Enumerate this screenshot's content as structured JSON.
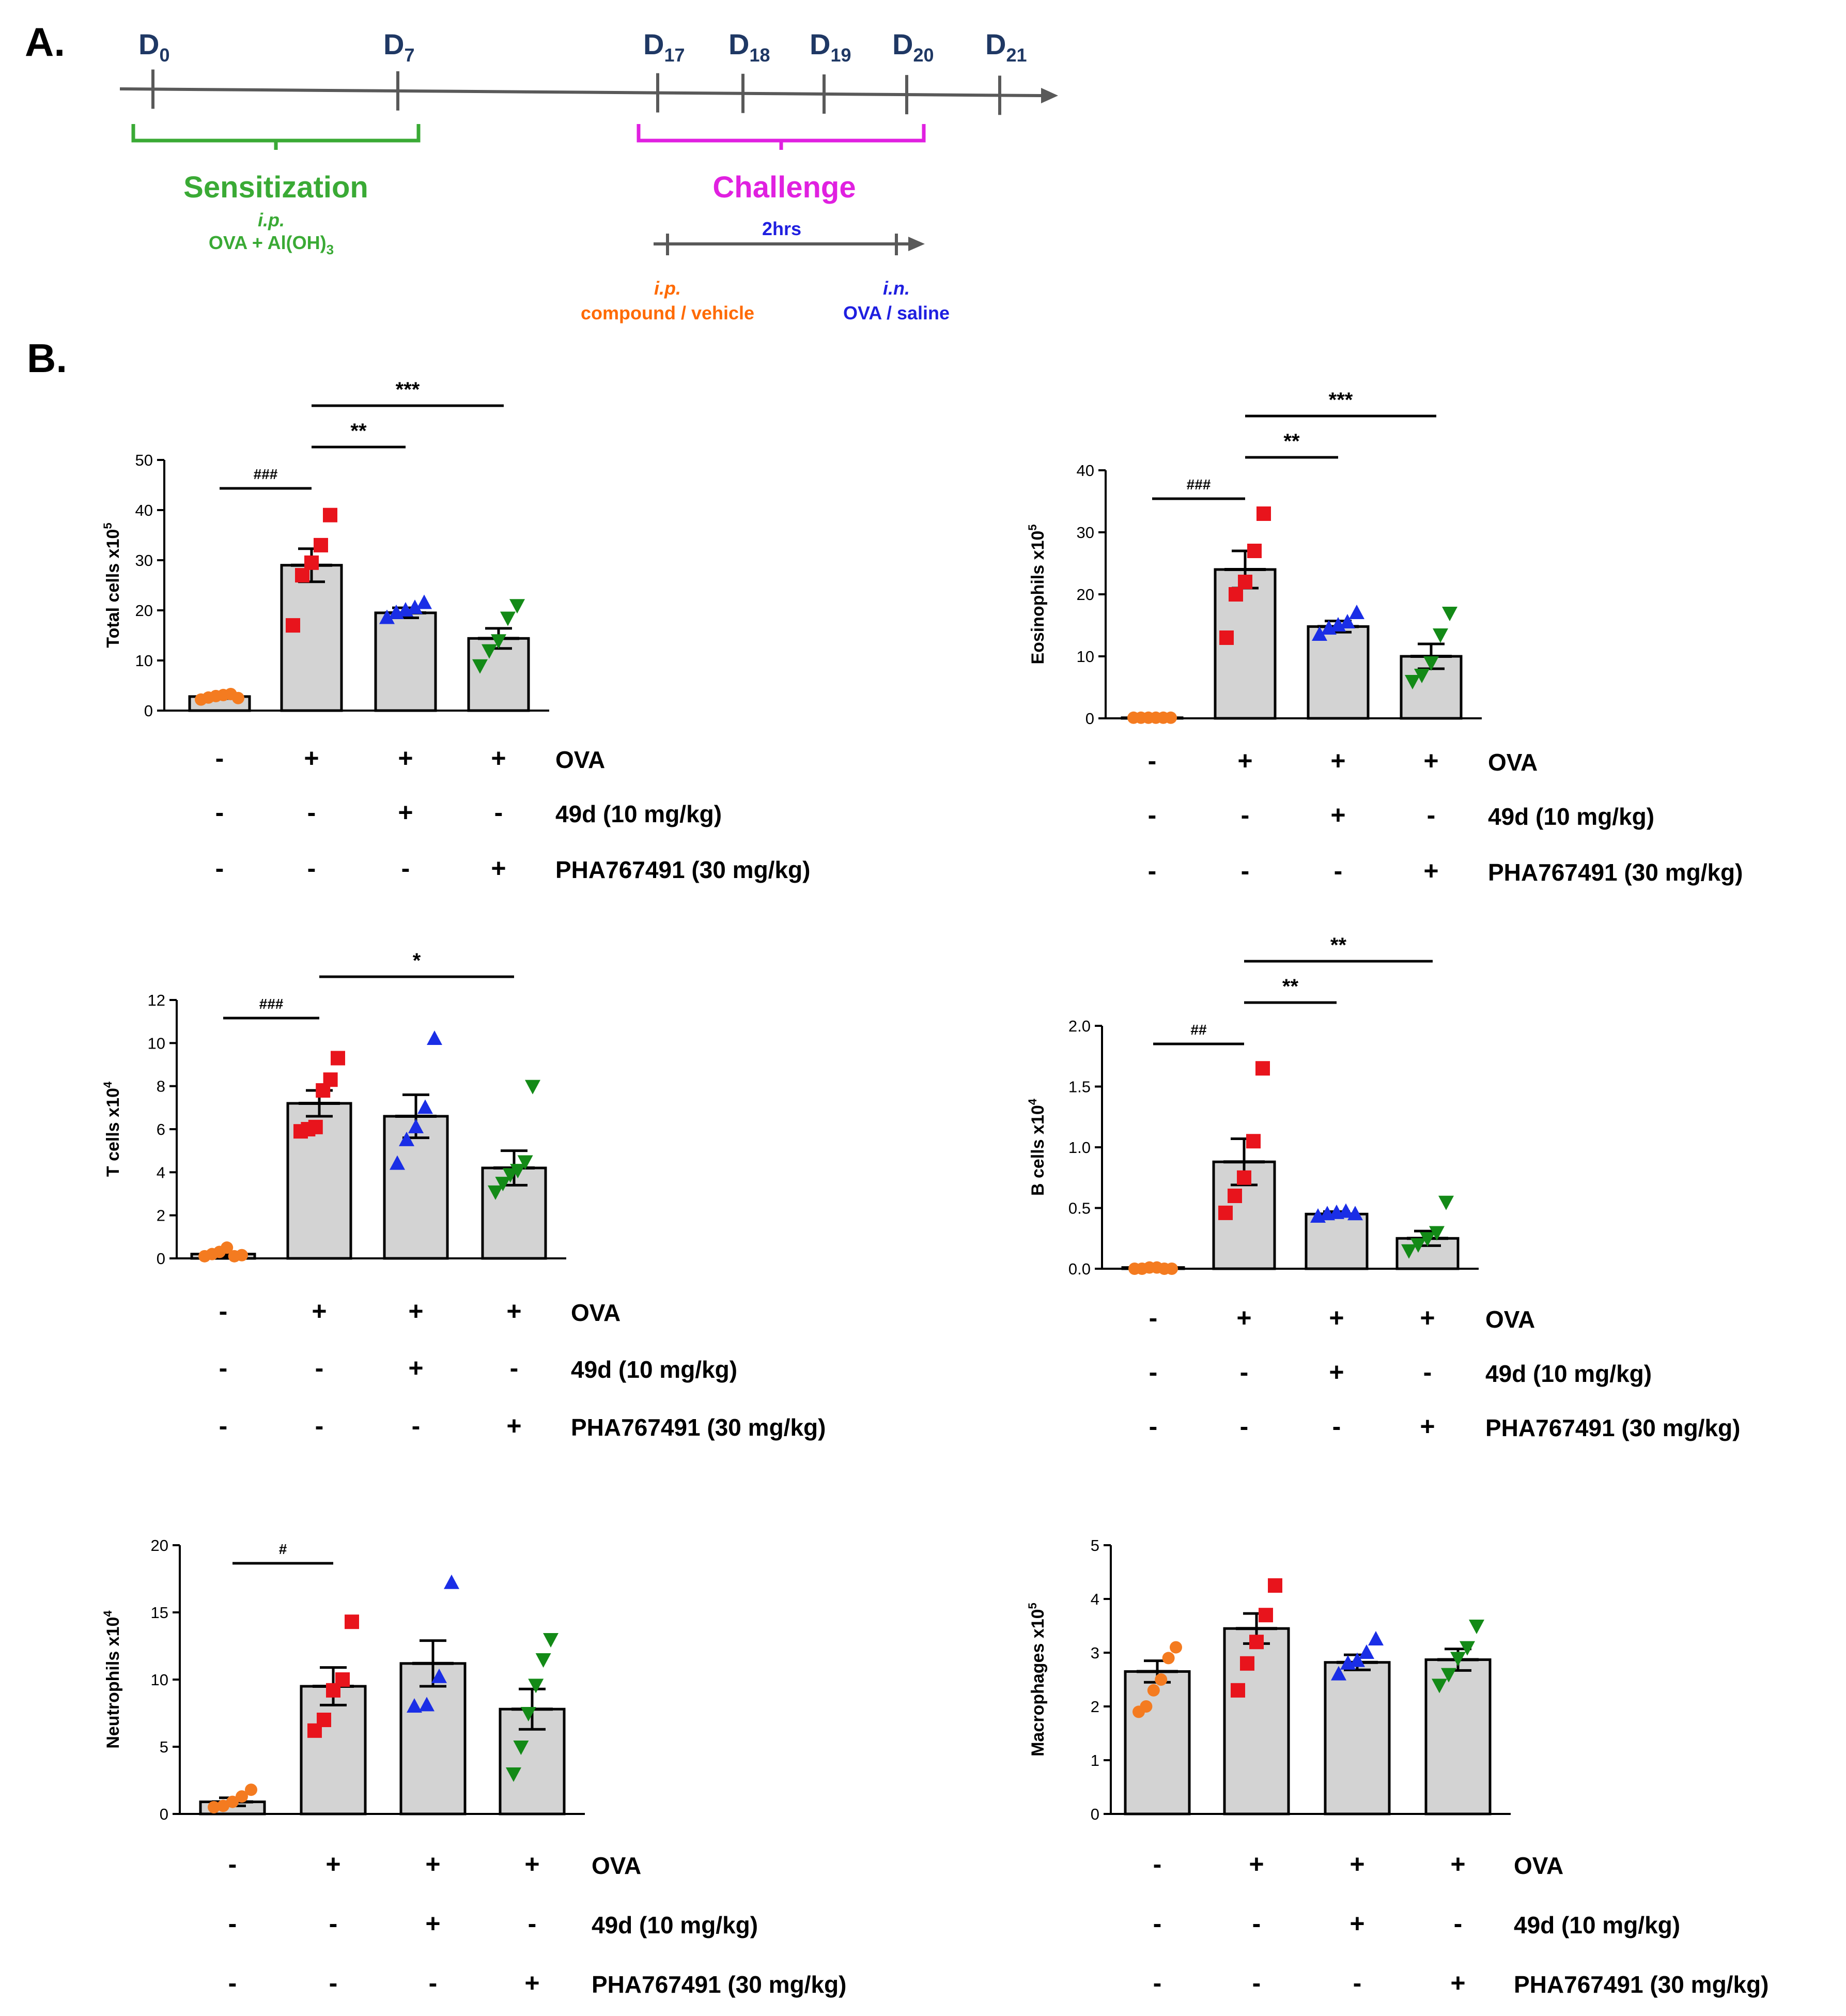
{
  "panel_labels": {
    "a": "A.",
    "b": "B."
  },
  "timeline": {
    "days": [
      {
        "base": "D",
        "sub": "0"
      },
      {
        "base": "D",
        "sub": "7"
      },
      {
        "base": "D",
        "sub": "17"
      },
      {
        "base": "D",
        "sub": "18"
      },
      {
        "base": "D",
        "sub": "19"
      },
      {
        "base": "D",
        "sub": "20"
      },
      {
        "base": "D",
        "sub": "21"
      }
    ],
    "sensitization": {
      "title": "Sensitization",
      "route": "i.p.",
      "agent": "OVA + Al(OH)",
      "agent_sub": "3"
    },
    "challenge": {
      "title": "Challenge",
      "interval": "2hrs",
      "left_route": "i.p.",
      "left_agent": "compound  / vehicle",
      "right_route": "i.n.",
      "right_agent": "OVA / saline"
    },
    "colors": {
      "axis": "#595959",
      "day": "#1f3864",
      "sensitization": "#3aaa35",
      "challenge": "#e020e0",
      "ip": "#ff6a00",
      "in": "#1f1fe0"
    }
  },
  "group_labels": [
    "OVA",
    "49d (10 mg/kg)",
    "PHA767491 (30 mg/kg)"
  ],
  "group_signs": [
    [
      "-",
      "+",
      "+",
      "+"
    ],
    [
      "-",
      "-",
      "+",
      "-"
    ],
    [
      "-",
      "-",
      "-",
      "+"
    ]
  ],
  "group_colors": [
    "#f47b20",
    "#e8141c",
    "#1a2ee6",
    "#138a17"
  ],
  "chart_data": [
    {
      "type": "bar",
      "id": "total",
      "ylabel": "Total cells x10",
      "ylabel_exp": "5",
      "ylim": [
        0,
        50
      ],
      "yticks": [
        "0",
        "10",
        "20",
        "30",
        "40",
        "50"
      ],
      "means": [
        2.8,
        29,
        19.5,
        14.4
      ],
      "sem": [
        0.4,
        3.3,
        1.0,
        2.0
      ],
      "points": [
        [
          2.2,
          2.6,
          2.9,
          3.1,
          3.3,
          2.5
        ],
        [
          17,
          27,
          29.5,
          33,
          39
        ],
        [
          18.5,
          19.5,
          20,
          20.5,
          21.5
        ],
        [
          9,
          12,
          14,
          18.5,
          21
        ]
      ],
      "sig": [
        {
          "from": 0,
          "to": 1,
          "label": "###",
          "level": 0
        },
        {
          "from": 1,
          "to": 2,
          "label": "**",
          "level": 1
        },
        {
          "from": 1,
          "to": 3,
          "label": "***",
          "level": 2
        }
      ]
    },
    {
      "type": "bar",
      "id": "eos",
      "ylabel": "Eosinophils x10",
      "ylabel_exp": "5",
      "ylim": [
        0,
        40
      ],
      "yticks": [
        "0",
        "10",
        "20",
        "30",
        "40"
      ],
      "means": [
        0.1,
        24,
        14.8,
        10
      ],
      "sem": [
        0.05,
        3,
        0.9,
        2
      ],
      "points": [
        [
          0.1,
          0.1,
          0.1,
          0.1,
          0.1,
          0.1
        ],
        [
          13,
          20,
          22,
          27,
          33
        ],
        [
          13.5,
          14.5,
          15,
          15.5,
          17
        ],
        [
          6,
          7,
          9,
          13.5,
          17
        ]
      ],
      "sig": [
        {
          "from": 0,
          "to": 1,
          "label": "###",
          "level": 0
        },
        {
          "from": 1,
          "to": 2,
          "label": "**",
          "level": 1
        },
        {
          "from": 1,
          "to": 3,
          "label": "***",
          "level": 2
        }
      ]
    },
    {
      "type": "bar",
      "id": "tcell",
      "ylabel": "T cells x10",
      "ylabel_exp": "4",
      "ylim": [
        0,
        12
      ],
      "yticks": [
        "0",
        "2",
        "4",
        "6",
        "8",
        "10",
        "12"
      ],
      "means": [
        0.2,
        7.2,
        6.6,
        4.2
      ],
      "sem": [
        0.1,
        0.6,
        1.0,
        0.8
      ],
      "points": [
        [
          0.1,
          0.2,
          0.3,
          0.5,
          0.1,
          0.15
        ],
        [
          5.9,
          6.0,
          6.1,
          7.8,
          8.3,
          9.3
        ],
        [
          4.4,
          5.5,
          6.1,
          7.0,
          10.2
        ],
        [
          3.1,
          3.5,
          3.9,
          4.1,
          4.5,
          8.0
        ]
      ],
      "sig": [
        {
          "from": 0,
          "to": 1,
          "label": "###",
          "level": 0
        },
        {
          "from": 1,
          "to": 3,
          "label": "*",
          "level": 1
        }
      ]
    },
    {
      "type": "bar",
      "id": "bcell",
      "ylabel": "B cells x10",
      "ylabel_exp": "4",
      "ylim": [
        0,
        2.0
      ],
      "yticks": [
        "0.0",
        "0.5",
        "1.0",
        "1.5",
        "2.0"
      ],
      "means": [
        0.01,
        0.88,
        0.45,
        0.25
      ],
      "sem": [
        0.01,
        0.19,
        0.02,
        0.06
      ],
      "points": [
        [
          0.0,
          0.0,
          0.01,
          0.01,
          0.0,
          0.0
        ],
        [
          0.46,
          0.6,
          0.75,
          1.05,
          1.65
        ],
        [
          0.43,
          0.45,
          0.46,
          0.47,
          0.45
        ],
        [
          0.15,
          0.2,
          0.25,
          0.3,
          0.55
        ]
      ],
      "sig": [
        {
          "from": 0,
          "to": 1,
          "label": "##",
          "level": 0
        },
        {
          "from": 1,
          "to": 2,
          "label": "**",
          "level": 1
        },
        {
          "from": 1,
          "to": 3,
          "label": "**",
          "level": 2
        }
      ]
    },
    {
      "type": "bar",
      "id": "neut",
      "ylabel": "Neutrophils x10",
      "ylabel_exp": "4",
      "ylim": [
        0,
        20
      ],
      "yticks": [
        "0",
        "5",
        "10",
        "15",
        "20"
      ],
      "means": [
        0.9,
        9.5,
        11.2,
        7.8
      ],
      "sem": [
        0.3,
        1.4,
        1.7,
        1.5
      ],
      "points": [
        [
          0.5,
          0.6,
          0.9,
          1.3,
          1.8
        ],
        [
          6.2,
          7.0,
          9.2,
          10,
          14.3
        ],
        [
          8.0,
          8.1,
          10.2,
          17.2
        ],
        [
          3.0,
          5.0,
          7.5,
          9.6,
          11.5,
          13.0
        ]
      ],
      "sig": [
        {
          "from": 0,
          "to": 1,
          "label": "#",
          "level": 0
        }
      ]
    },
    {
      "type": "bar",
      "id": "macro",
      "ylabel": "Macrophages x10",
      "ylabel_exp": "5",
      "ylim": [
        0,
        5
      ],
      "yticks": [
        "0",
        "1",
        "2",
        "3",
        "4",
        "5"
      ],
      "means": [
        2.65,
        3.45,
        2.82,
        2.87
      ],
      "sem": [
        0.2,
        0.28,
        0.14,
        0.2
      ],
      "points": [
        [
          1.9,
          2.0,
          2.3,
          2.5,
          2.9,
          3.1
        ],
        [
          2.3,
          2.8,
          3.2,
          3.7,
          4.25
        ],
        [
          2.6,
          2.8,
          2.85,
          3.0,
          3.25
        ],
        [
          2.4,
          2.6,
          2.9,
          3.1,
          3.5
        ]
      ],
      "sig": []
    }
  ]
}
